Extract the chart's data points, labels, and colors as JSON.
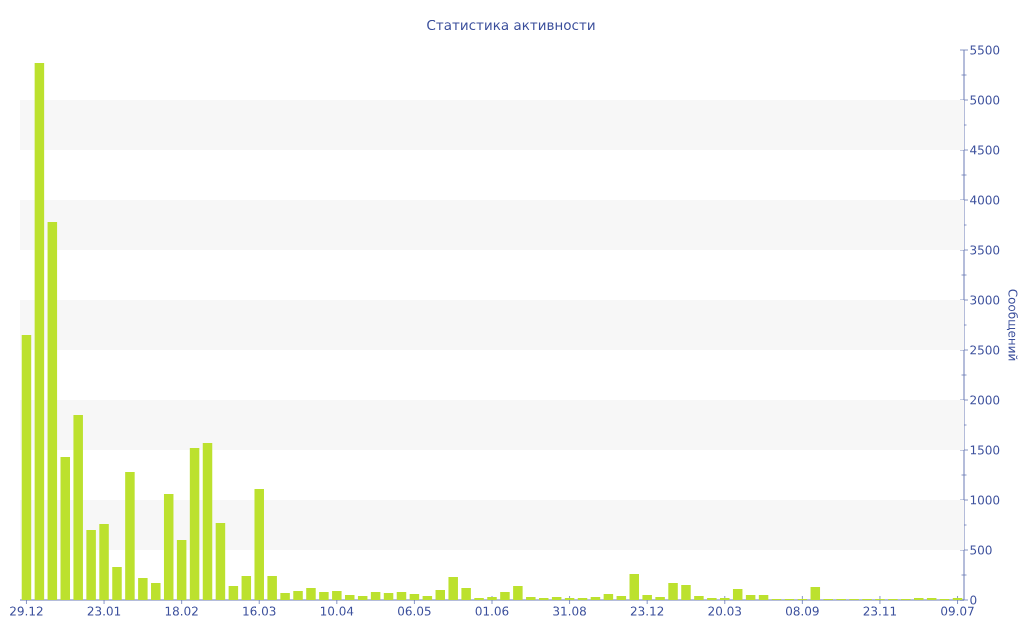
{
  "chart_data": {
    "type": "bar",
    "title": "Статистика активности",
    "ylabel": "Сообщений",
    "categories": [
      "29.12",
      null,
      null,
      null,
      null,
      null,
      "23.01",
      null,
      null,
      null,
      null,
      null,
      "18.02",
      null,
      null,
      null,
      null,
      null,
      "16.03",
      null,
      null,
      null,
      null,
      null,
      "10.04",
      null,
      null,
      null,
      null,
      null,
      "06.05",
      null,
      null,
      null,
      null,
      null,
      "01.06",
      null,
      null,
      null,
      null,
      null,
      "31.08",
      null,
      null,
      null,
      null,
      null,
      "23.12",
      null,
      null,
      null,
      null,
      null,
      "20.03",
      null,
      null,
      null,
      null,
      null,
      "08.09",
      null,
      null,
      null,
      null,
      null,
      "23.11",
      null,
      null,
      null,
      null,
      null,
      "09.07"
    ],
    "values": [
      2650,
      5370,
      3780,
      1430,
      1850,
      700,
      760,
      330,
      1280,
      220,
      170,
      1060,
      600,
      1520,
      1570,
      770,
      140,
      240,
      1110,
      240,
      70,
      90,
      120,
      80,
      90,
      50,
      40,
      80,
      70,
      80,
      60,
      40,
      100,
      230,
      120,
      20,
      30,
      80,
      140,
      30,
      20,
      30,
      20,
      20,
      30,
      60,
      40,
      260,
      50,
      30,
      170,
      150,
      40,
      20,
      20,
      110,
      50,
      50,
      10,
      10,
      10,
      130,
      10,
      10,
      10,
      10,
      10,
      10,
      10,
      20,
      20,
      10,
      20
    ],
    "color": "#bce12e",
    "ylim": [
      0,
      5500
    ],
    "yticks": [
      0,
      500,
      1000,
      1500,
      2000,
      2500,
      3000,
      3500,
      4000,
      4500,
      5000,
      5500
    ],
    "bands": [
      {
        "axis": "y",
        "from": 500,
        "to": 1000,
        "color": "#f7f7f7"
      },
      {
        "axis": "y",
        "from": 1500,
        "to": 2000,
        "color": "#f7f7f7"
      },
      {
        "axis": "y",
        "from": 2500,
        "to": 3000,
        "color": "#f7f7f7"
      },
      {
        "axis": "y",
        "from": 3500,
        "to": 4000,
        "color": "#f7f7f7"
      },
      {
        "axis": "y",
        "from": 4500,
        "to": 5000,
        "color": "#f7f7f7"
      }
    ]
  }
}
